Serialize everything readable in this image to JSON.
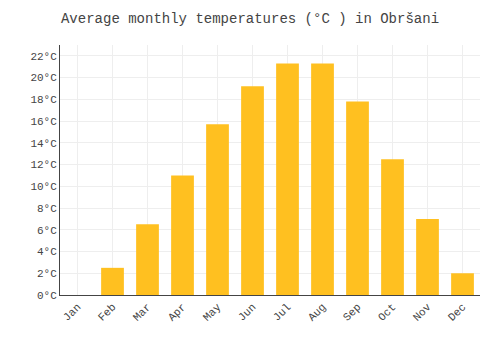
{
  "chart_data": {
    "type": "bar",
    "title": "Average monthly temperatures (°C ) in Obršani",
    "categories": [
      "Jan",
      "Feb",
      "Mar",
      "Apr",
      "May",
      "Jun",
      "Jul",
      "Aug",
      "Sep",
      "Oct",
      "Nov",
      "Dec"
    ],
    "values": [
      0,
      2.5,
      6.5,
      11.0,
      15.7,
      19.2,
      21.3,
      21.3,
      17.8,
      12.5,
      7.0,
      2.0
    ],
    "color": "#FFC020",
    "ylim": [
      0,
      23
    ],
    "yticks": [
      {
        "value": 0,
        "label": "0°C"
      },
      {
        "value": 2,
        "label": "2°C"
      },
      {
        "value": 4,
        "label": "4°C"
      },
      {
        "value": 6,
        "label": "6°C"
      },
      {
        "value": 8,
        "label": "8°C"
      },
      {
        "value": 10,
        "label": "10°C"
      },
      {
        "value": 12,
        "label": "12°C"
      },
      {
        "value": 14,
        "label": "14°C"
      },
      {
        "value": 16,
        "label": "16°C"
      },
      {
        "value": 18,
        "label": "18°C"
      },
      {
        "value": 20,
        "label": "20°C"
      },
      {
        "value": 22,
        "label": "22°C"
      }
    ],
    "grid": true
  }
}
